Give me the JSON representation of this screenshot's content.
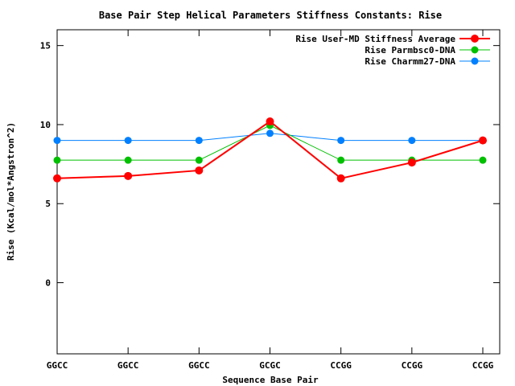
{
  "chart_data": {
    "type": "line",
    "title": "Base Pair Step Helical Parameters Stiffness Constants: Rise",
    "xlabel": "Sequence Base Pair",
    "ylabel": "Rise (Kcal/mol*Angstron^2)",
    "categories": [
      "GGCC",
      "GGCC",
      "GGCC",
      "GCGC",
      "CCGG",
      "CCGG",
      "CCGG"
    ],
    "ylim": [
      -4.5,
      16
    ],
    "yticks": [
      0,
      5,
      10,
      15
    ],
    "grid": false,
    "legend_position": "top-right",
    "series": [
      {
        "name": "Rise User-MD Stiffness Average",
        "color": "#ff0000",
        "values": [
          6.6,
          6.75,
          7.1,
          10.2,
          6.6,
          7.6,
          9.0
        ]
      },
      {
        "name": "Rise Parmbsc0-DNA",
        "color": "#00c000",
        "values": [
          7.75,
          7.75,
          7.75,
          9.95,
          7.75,
          7.75,
          7.75
        ]
      },
      {
        "name": "Rise Charmm27-DNA",
        "color": "#0080ff",
        "values": [
          9.0,
          9.0,
          9.0,
          9.45,
          9.0,
          9.0,
          9.0
        ]
      }
    ]
  }
}
